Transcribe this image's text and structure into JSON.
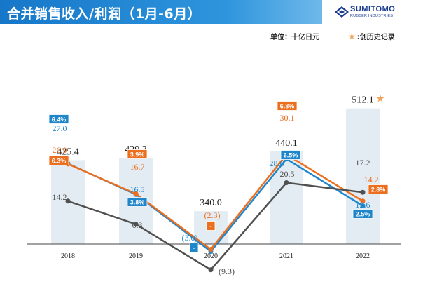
{
  "header": {
    "title": "合并销售收入/利润（1月-6月）",
    "logo_name": "SUMITOMO",
    "logo_sub": "RUBBER INDUSTRIES",
    "unit_label": "单位：十亿日元",
    "record_label": ":创历史记录",
    "record_icon": "star-icon"
  },
  "colors": {
    "bar": "#e3ecf2",
    "blue": "#1f86cc",
    "orange": "#ec6f1f",
    "dark": "#505050",
    "star": "#f0a35a"
  },
  "chart_data": {
    "type": "bar",
    "categories": [
      "2018",
      "2019",
      "2020",
      "2021",
      "2022"
    ],
    "bars": {
      "values": [
        425.4,
        429.3,
        340.0,
        440.1,
        512.1
      ],
      "labels": [
        "425.4",
        "429.3",
        "340.0",
        "440.1",
        "512.1"
      ],
      "record_year": "2022"
    },
    "series": [
      {
        "color": "#1f86cc",
        "values": [
          27.0,
          16.5,
          -3.0,
          28.6,
          12.6
        ],
        "labels": [
          "27.0",
          "16.5",
          "(3.0)",
          "28.6",
          "12.6"
        ],
        "margins": [
          "6.4%",
          "3.8%",
          "-",
          "6.5%",
          "2.5%"
        ]
      },
      {
        "color": "#ec6f1f",
        "values": [
          26.9,
          16.7,
          -2.3,
          30.1,
          14.2
        ],
        "labels": [
          "26.9",
          "16.7",
          "(2.3)",
          "30.1",
          "14.2"
        ],
        "margins": [
          "6.3%",
          "3.9%",
          "-",
          "6.8%",
          "2.8%"
        ]
      },
      {
        "color": "#505050",
        "values": [
          14.2,
          6.3,
          -9.3,
          20.5,
          17.2
        ],
        "labels": [
          "14.2",
          "6.3",
          "(9.3)",
          "20.5",
          "17.2"
        ]
      }
    ]
  }
}
